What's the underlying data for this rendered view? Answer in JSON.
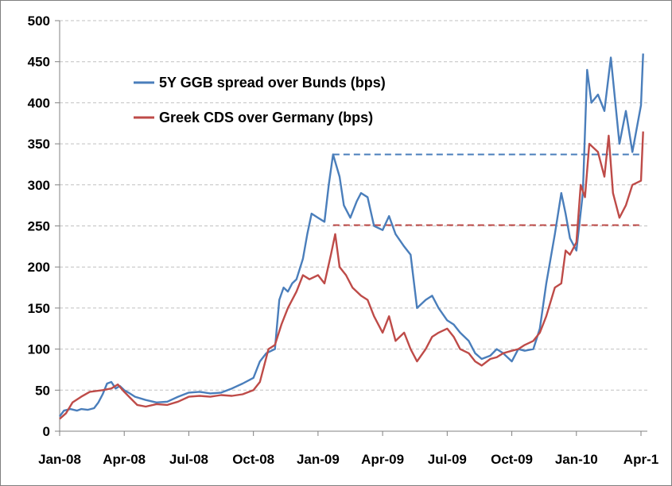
{
  "chart_data": {
    "type": "line",
    "title": "",
    "xlabel": "",
    "ylabel": "",
    "x_start": "Jan-08",
    "x_ticks": [
      "Jan-08",
      "Apr-08",
      "Jul-08",
      "Oct-08",
      "Jan-09",
      "Apr-09",
      "Jul-09",
      "Oct-09",
      "Jan-10",
      "Apr-1"
    ],
    "y_ticks": [
      0,
      50,
      100,
      150,
      200,
      250,
      300,
      350,
      400,
      450,
      500
    ],
    "ylim": [
      0,
      500
    ],
    "grid": "horizontal dashed",
    "legend_position": "top-left",
    "series": [
      {
        "name": "5Y GGB spread over Bunds (bps)",
        "color": "#4a7ebb",
        "points": [
          [
            "Jan-08",
            18
          ],
          [
            "Jan-08+0.2",
            25
          ],
          [
            "Jan-08+0.5",
            27
          ],
          [
            "Jan-08+0.8",
            25
          ],
          [
            "Feb-08",
            27
          ],
          [
            "Feb-08+0.3",
            26
          ],
          [
            "Feb-08+0.6",
            28
          ],
          [
            "Feb-08+0.8",
            35
          ],
          [
            "Mar-08",
            45
          ],
          [
            "Mar-08+0.2",
            58
          ],
          [
            "Mar-08+0.4",
            60
          ],
          [
            "Mar-08+0.6",
            52
          ],
          [
            "Mar-08+0.8",
            55
          ],
          [
            "Apr-08",
            50
          ],
          [
            "Apr-08+0.2",
            47
          ],
          [
            "Apr-08+0.5",
            42
          ],
          [
            "May-08",
            38
          ],
          [
            "May-08+0.5",
            35
          ],
          [
            "Jun-08",
            36
          ],
          [
            "Jun-08+0.5",
            42
          ],
          [
            "Jul-08",
            47
          ],
          [
            "Jul-08+0.5",
            48
          ],
          [
            "Aug-08",
            46
          ],
          [
            "Aug-08+0.5",
            47
          ],
          [
            "Sep-08",
            52
          ],
          [
            "Sep-08+0.5",
            58
          ],
          [
            "Oct-08",
            65
          ],
          [
            "Oct-08+0.3",
            85
          ],
          [
            "Oct-08+0.6",
            95
          ],
          [
            "Nov-08",
            100
          ],
          [
            "Nov-08+0.2",
            160
          ],
          [
            "Nov-08+0.4",
            175
          ],
          [
            "Nov-08+0.6",
            170
          ],
          [
            "Nov-08+0.8",
            180
          ],
          [
            "Dec-08",
            185
          ],
          [
            "Dec-08+0.3",
            210
          ],
          [
            "Dec-08+0.5",
            240
          ],
          [
            "Dec-08+0.7",
            265
          ],
          [
            "Jan-09",
            260
          ],
          [
            "Jan-09+0.3",
            255
          ],
          [
            "Jan-09+0.5",
            300
          ],
          [
            "Jan-09+0.7",
            337
          ],
          [
            "Feb-09",
            310
          ],
          [
            "Feb-09+0.2",
            275
          ],
          [
            "Feb-09+0.5",
            260
          ],
          [
            "Feb-09+0.8",
            280
          ],
          [
            "Mar-09",
            290
          ],
          [
            "Mar-09+0.3",
            285
          ],
          [
            "Mar-09+0.6",
            250
          ],
          [
            "Apr-09",
            245
          ],
          [
            "Apr-09+0.3",
            262
          ],
          [
            "Apr-09+0.6",
            240
          ],
          [
            "May-09",
            225
          ],
          [
            "May-09+0.3",
            215
          ],
          [
            "May-09+0.6",
            150
          ],
          [
            "Jun-09",
            160
          ],
          [
            "Jun-09+0.3",
            165
          ],
          [
            "Jun-09+0.6",
            150
          ],
          [
            "Jul-09",
            135
          ],
          [
            "Jul-09+0.3",
            130
          ],
          [
            "Jul-09+0.6",
            120
          ],
          [
            "Aug-09",
            110
          ],
          [
            "Aug-09+0.3",
            95
          ],
          [
            "Aug-09+0.6",
            88
          ],
          [
            "Sep-09",
            92
          ],
          [
            "Sep-09+0.3",
            100
          ],
          [
            "Sep-09+0.6",
            95
          ],
          [
            "Oct-09",
            85
          ],
          [
            "Oct-09+0.3",
            100
          ],
          [
            "Oct-09+0.6",
            98
          ],
          [
            "Nov-09",
            100
          ],
          [
            "Nov-09+0.3",
            125
          ],
          [
            "Nov-09+0.6",
            180
          ],
          [
            "Dec-09",
            240
          ],
          [
            "Dec-09+0.3",
            290
          ],
          [
            "Dec-09+0.5",
            265
          ],
          [
            "Dec-09+0.7",
            235
          ],
          [
            "Jan-10",
            220
          ],
          [
            "Jan-10+0.3",
            290
          ],
          [
            "Jan-10+0.5",
            440
          ],
          [
            "Jan-10+0.7",
            400
          ],
          [
            "Feb-10",
            410
          ],
          [
            "Feb-10+0.3",
            390
          ],
          [
            "Feb-10+0.6",
            455
          ],
          [
            "Mar-10",
            350
          ],
          [
            "Mar-10+0.3",
            390
          ],
          [
            "Mar-10+0.6",
            340
          ],
          [
            "Apr-10",
            397
          ],
          [
            "Apr-10+0.1",
            460
          ]
        ]
      },
      {
        "name": "Greek CDS over Germany (bps)",
        "color": "#be4b48",
        "points": [
          [
            "Jan-08",
            15
          ],
          [
            "Jan-08+0.3",
            22
          ],
          [
            "Jan-08+0.6",
            35
          ],
          [
            "Feb-08",
            42
          ],
          [
            "Feb-08+0.4",
            48
          ],
          [
            "Mar-08",
            50
          ],
          [
            "Mar-08+0.4",
            52
          ],
          [
            "Mar-08+0.7",
            57
          ],
          [
            "Apr-08",
            48
          ],
          [
            "Apr-08+0.3",
            40
          ],
          [
            "Apr-08+0.6",
            32
          ],
          [
            "May-08",
            30
          ],
          [
            "May-08+0.5",
            33
          ],
          [
            "Jun-08",
            32
          ],
          [
            "Jun-08+0.5",
            36
          ],
          [
            "Jul-08",
            42
          ],
          [
            "Jul-08+0.5",
            43
          ],
          [
            "Aug-08",
            42
          ],
          [
            "Aug-08+0.5",
            44
          ],
          [
            "Sep-08",
            43
          ],
          [
            "Sep-08+0.5",
            45
          ],
          [
            "Oct-08",
            50
          ],
          [
            "Oct-08+0.3",
            60
          ],
          [
            "Oct-08+0.5",
            80
          ],
          [
            "Oct-08+0.7",
            100
          ],
          [
            "Nov-08",
            105
          ],
          [
            "Nov-08+0.3",
            130
          ],
          [
            "Nov-08+0.6",
            150
          ],
          [
            "Dec-08",
            170
          ],
          [
            "Dec-08+0.3",
            190
          ],
          [
            "Dec-08+0.6",
            185
          ],
          [
            "Jan-09",
            190
          ],
          [
            "Jan-09+0.3",
            180
          ],
          [
            "Jan-09+0.6",
            215
          ],
          [
            "Jan-09+0.8",
            240
          ],
          [
            "Feb-09",
            200
          ],
          [
            "Feb-09+0.3",
            190
          ],
          [
            "Feb-09+0.6",
            175
          ],
          [
            "Mar-09",
            165
          ],
          [
            "Mar-09+0.3",
            160
          ],
          [
            "Mar-09+0.6",
            140
          ],
          [
            "Apr-09",
            120
          ],
          [
            "Apr-09+0.3",
            140
          ],
          [
            "Apr-09+0.6",
            110
          ],
          [
            "May-09",
            120
          ],
          [
            "May-09+0.3",
            100
          ],
          [
            "May-09+0.6",
            85
          ],
          [
            "Jun-09",
            100
          ],
          [
            "Jun-09+0.3",
            115
          ],
          [
            "Jun-09+0.6",
            120
          ],
          [
            "Jul-09",
            125
          ],
          [
            "Jul-09+0.3",
            115
          ],
          [
            "Jul-09+0.6",
            100
          ],
          [
            "Aug-09",
            95
          ],
          [
            "Aug-09+0.3",
            85
          ],
          [
            "Aug-09+0.6",
            80
          ],
          [
            "Sep-09",
            88
          ],
          [
            "Sep-09+0.3",
            90
          ],
          [
            "Sep-09+0.6",
            95
          ],
          [
            "Oct-09",
            98
          ],
          [
            "Oct-09+0.3",
            100
          ],
          [
            "Oct-09+0.6",
            105
          ],
          [
            "Nov-09",
            110
          ],
          [
            "Nov-09+0.3",
            120
          ],
          [
            "Nov-09+0.6",
            140
          ],
          [
            "Dec-09",
            175
          ],
          [
            "Dec-09+0.3",
            180
          ],
          [
            "Dec-09+0.5",
            220
          ],
          [
            "Dec-09+0.7",
            215
          ],
          [
            "Jan-10",
            230
          ],
          [
            "Jan-10+0.2",
            300
          ],
          [
            "Jan-10+0.4",
            285
          ],
          [
            "Jan-10+0.6",
            350
          ],
          [
            "Feb-10",
            340
          ],
          [
            "Feb-10+0.3",
            310
          ],
          [
            "Feb-10+0.5",
            360
          ],
          [
            "Feb-10+0.7",
            290
          ],
          [
            "Mar-10",
            260
          ],
          [
            "Mar-10+0.3",
            275
          ],
          [
            "Mar-10+0.6",
            300
          ],
          [
            "Apr-10",
            305
          ],
          [
            "Apr-10+0.1",
            365
          ]
        ]
      }
    ],
    "reference_lines": [
      {
        "series": "5Y GGB spread over Bunds (bps)",
        "y": 337,
        "from": "Jan-09+0.7",
        "to": "Apr-10+0.1",
        "style": "dashed",
        "color": "#4a7ebb"
      },
      {
        "series": "Greek CDS over Germany (bps)",
        "y": 251,
        "from": "Jan-09+0.7",
        "to": "Apr-10+0.1",
        "style": "dashed",
        "color": "#be4b48"
      }
    ]
  }
}
